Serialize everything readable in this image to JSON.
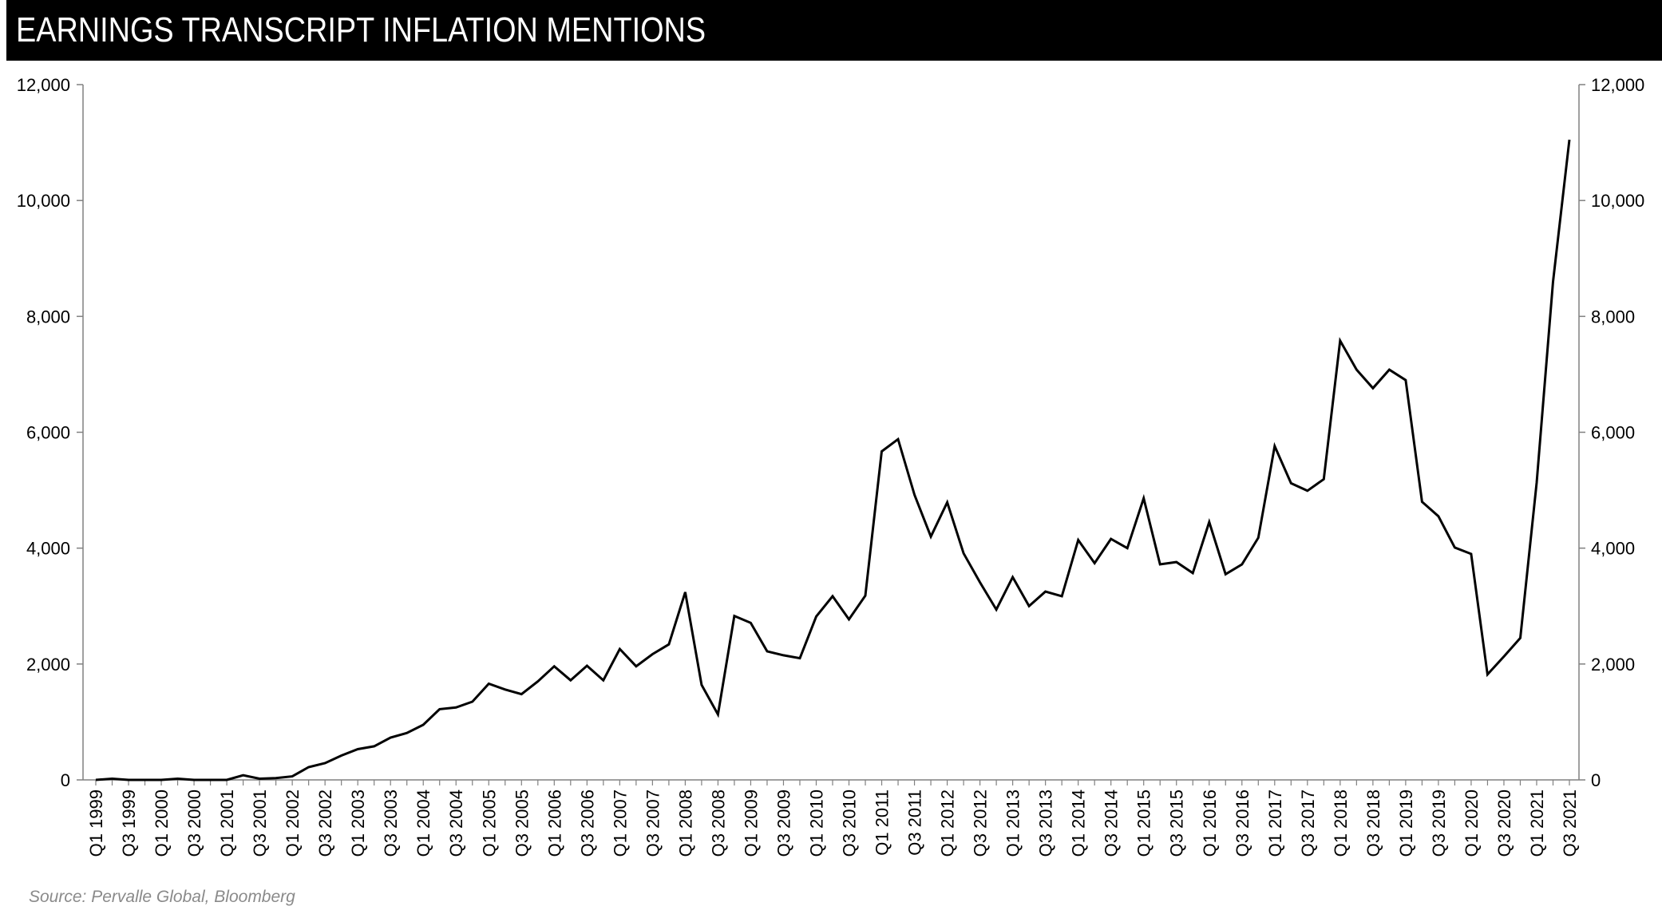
{
  "header": {
    "title": "EARNINGS TRANSCRIPT INFLATION MENTIONS"
  },
  "source": "Source: Pervalle Global, Bloomberg",
  "chart_data": {
    "type": "line",
    "title": "EARNINGS TRANSCRIPT INFLATION MENTIONS",
    "xlabel": "",
    "ylabel": "",
    "ylim": [
      0,
      12000
    ],
    "yticks": [
      "0",
      "2,000",
      "4,000",
      "6,000",
      "8,000",
      "10,000",
      "12,000"
    ],
    "yticks_right": [
      "0",
      "2,000",
      "4,000",
      "6,000",
      "8,000",
      "10,000",
      "12,000"
    ],
    "grid": false,
    "legend": "none",
    "line_color": "#000000",
    "categories": [
      "Q1 1999",
      "Q2 1999",
      "Q3 1999",
      "Q4 1999",
      "Q1 2000",
      "Q2 2000",
      "Q3 2000",
      "Q4 2000",
      "Q1 2001",
      "Q2 2001",
      "Q3 2001",
      "Q4 2001",
      "Q1 2002",
      "Q2 2002",
      "Q3 2002",
      "Q4 2002",
      "Q1 2003",
      "Q2 2003",
      "Q3 2003",
      "Q4 2003",
      "Q1 2004",
      "Q2 2004",
      "Q3 2004",
      "Q4 2004",
      "Q1 2005",
      "Q2 2005",
      "Q3 2005",
      "Q4 2005",
      "Q1 2006",
      "Q2 2006",
      "Q3 2006",
      "Q4 2006",
      "Q1 2007",
      "Q2 2007",
      "Q3 2007",
      "Q4 2007",
      "Q1 2008",
      "Q2 2008",
      "Q3 2008",
      "Q4 2008",
      "Q1 2009",
      "Q2 2009",
      "Q3 2009",
      "Q4 2009",
      "Q1 2010",
      "Q2 2010",
      "Q3 2010",
      "Q4 2010",
      "Q1 2011",
      "Q2 2011",
      "Q3 2011",
      "Q4 2011",
      "Q1 2012",
      "Q2 2012",
      "Q3 2012",
      "Q4 2012",
      "Q1 2013",
      "Q2 2013",
      "Q3 2013",
      "Q4 2013",
      "Q1 2014",
      "Q2 2014",
      "Q3 2014",
      "Q4 2014",
      "Q1 2015",
      "Q2 2015",
      "Q3 2015",
      "Q4 2015",
      "Q1 2016",
      "Q2 2016",
      "Q3 2016",
      "Q4 2016",
      "Q1 2017",
      "Q2 2017",
      "Q3 2017",
      "Q4 2017",
      "Q1 2018",
      "Q2 2018",
      "Q3 2018",
      "Q4 2018",
      "Q1 2019",
      "Q2 2019",
      "Q3 2019",
      "Q4 2019",
      "Q1 2020",
      "Q2 2020",
      "Q3 2020",
      "Q4 2020",
      "Q1 2021",
      "Q2 2021",
      "Q3 2021"
    ],
    "tick_labels": [
      "Q1 1999",
      "Q3 1999",
      "Q1 2000",
      "Q3 2000",
      "Q1 2001",
      "Q3 2001",
      "Q1 2002",
      "Q3 2002",
      "Q1 2003",
      "Q3 2003",
      "Q1 2004",
      "Q3 2004",
      "Q1 2005",
      "Q3 2005",
      "Q1 2006",
      "Q3 2006",
      "Q1 2007",
      "Q3 2007",
      "Q1 2008",
      "Q3 2008",
      "Q1 2009",
      "Q3 2009",
      "Q1 2010",
      "Q3 2010",
      "Q1 2011",
      "Q3 2011",
      "Q1 2012",
      "Q3 2012",
      "Q1 2013",
      "Q3 2013",
      "Q1 2014",
      "Q3 2014",
      "Q1 2015",
      "Q3 2015",
      "Q1 2016",
      "Q3 2016",
      "Q1 2017",
      "Q3 2017",
      "Q1 2018",
      "Q3 2018",
      "Q1 2019",
      "Q3 2019",
      "Q1 2020",
      "Q3 2020",
      "Q1 2021",
      "Q3 2021"
    ],
    "series": [
      {
        "values": [
          0,
          20,
          0,
          0,
          0,
          20,
          0,
          0,
          0,
          80,
          20,
          30,
          60,
          220,
          290,
          420,
          530,
          580,
          730,
          810,
          950,
          1220,
          1250,
          1350,
          1660,
          1560,
          1480,
          1700,
          1960,
          1720,
          1970,
          1720,
          2260,
          1960,
          2170,
          2340,
          3240,
          1640,
          1130,
          2830,
          2710,
          2220,
          2150,
          2100,
          2820,
          3170,
          2770,
          3180,
          5670,
          5880,
          4920,
          4200,
          4790,
          3910,
          3410,
          2940,
          3500,
          3000,
          3250,
          3170,
          4140,
          3740,
          4160,
          4000,
          4860,
          3720,
          3760,
          3570,
          4450,
          3550,
          3720,
          4180,
          5760,
          5120,
          4990,
          5190,
          7580,
          7080,
          6760,
          7080,
          6900,
          4800,
          4550,
          4010,
          3900,
          1820,
          2130,
          2450,
          5130,
          8600,
          11050
        ]
      }
    ]
  }
}
